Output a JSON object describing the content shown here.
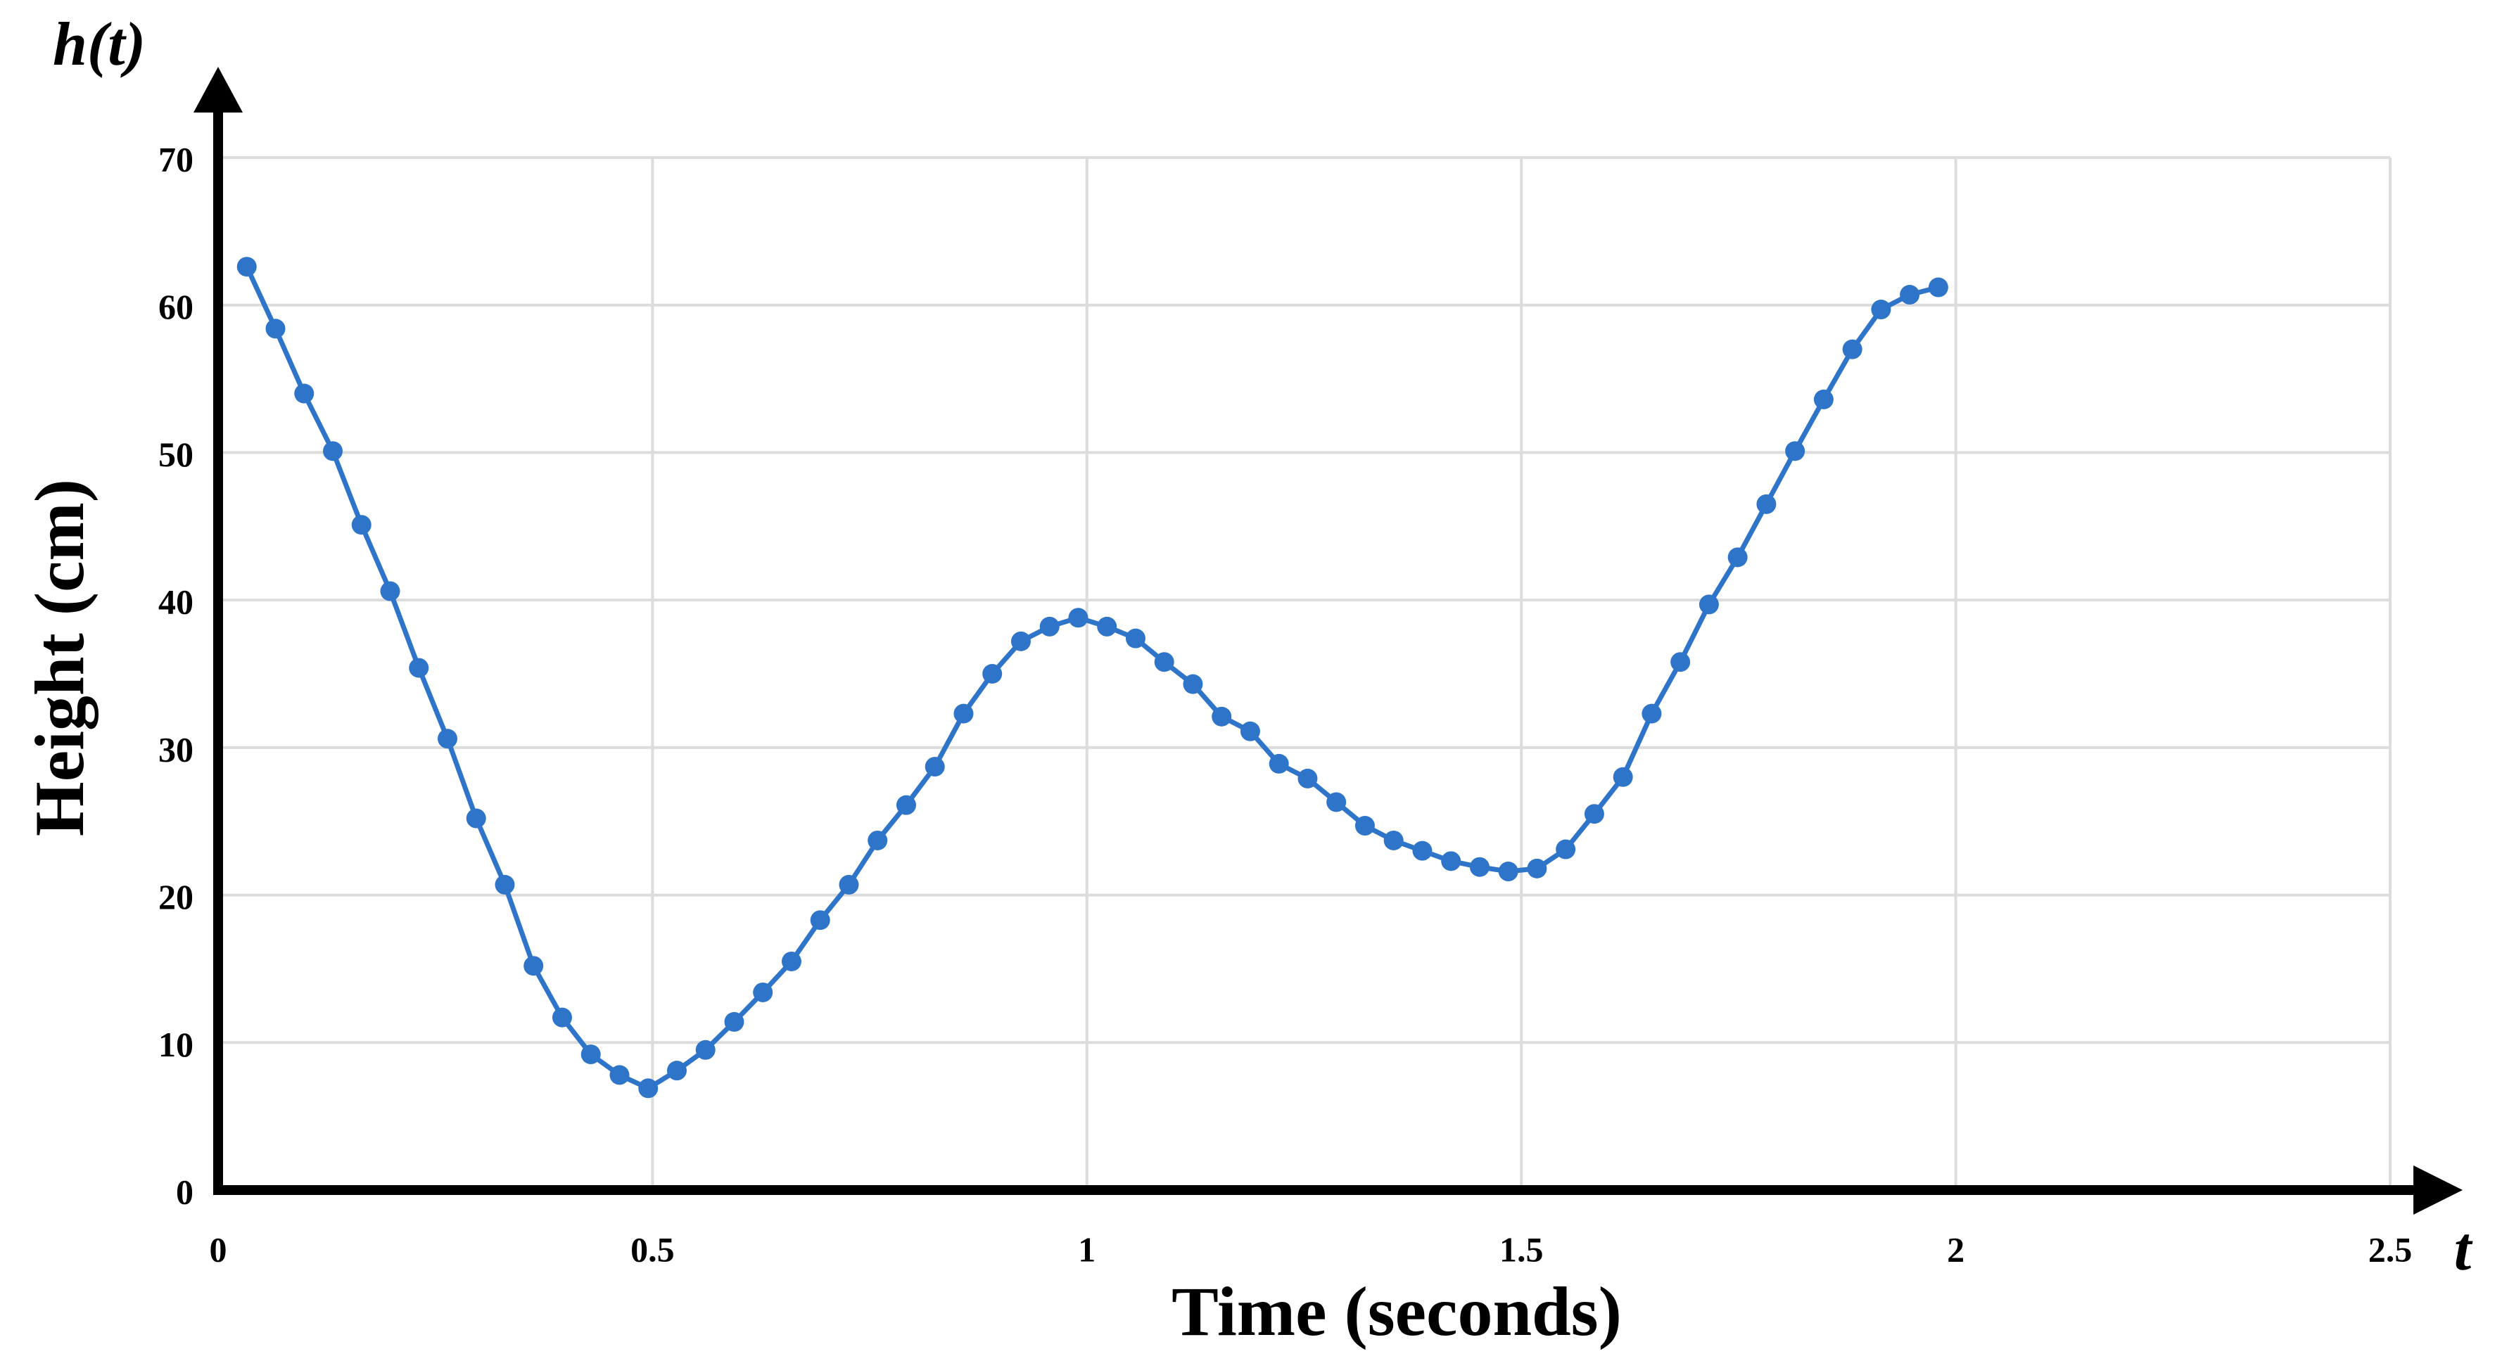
{
  "chart_data": {
    "type": "line",
    "y_label_top": "h(t)",
    "x_label_end": "t",
    "x_axis_title": "Time (seconds)",
    "y_axis_title": "Height (cm)",
    "x": [
      0.033,
      0.066,
      0.099,
      0.132,
      0.165,
      0.198,
      0.231,
      0.264,
      0.297,
      0.33,
      0.363,
      0.396,
      0.429,
      0.462,
      0.495,
      0.528,
      0.561,
      0.594,
      0.627,
      0.66,
      0.693,
      0.726,
      0.759,
      0.792,
      0.825,
      0.858,
      0.891,
      0.924,
      0.957,
      0.99,
      1.023,
      1.056,
      1.089,
      1.122,
      1.155,
      1.188,
      1.221,
      1.254,
      1.287,
      1.32,
      1.353,
      1.386,
      1.419,
      1.452,
      1.485,
      1.518,
      1.551,
      1.584,
      1.617,
      1.65,
      1.683,
      1.716,
      1.749,
      1.782,
      1.815,
      1.848,
      1.881,
      1.914,
      1.947,
      1.98
    ],
    "series": [
      {
        "color": "#2e75c9",
        "values": [
          62.6,
          58.4,
          54.0,
          50.1,
          45.1,
          40.6,
          35.4,
          30.6,
          25.2,
          20.7,
          15.2,
          11.7,
          9.2,
          7.8,
          6.9,
          8.1,
          9.5,
          11.4,
          13.4,
          15.5,
          18.3,
          20.7,
          23.7,
          26.1,
          28.7,
          32.3,
          35.0,
          37.2,
          38.2,
          38.8,
          38.2,
          37.4,
          35.8,
          34.3,
          32.1,
          31.1,
          28.9,
          27.9,
          26.3,
          24.7,
          23.7,
          23.0,
          22.3,
          21.9,
          21.6,
          21.8,
          23.1,
          25.5,
          28.0,
          32.3,
          35.8,
          39.7,
          42.9,
          46.5,
          50.1,
          53.6,
          57.0,
          59.7,
          60.7,
          61.2
        ]
      }
    ],
    "xlim": [
      0,
      2.5
    ],
    "xticks": [
      0,
      0.5,
      1,
      1.5,
      2,
      2.5
    ],
    "ylim": [
      0,
      70
    ],
    "yticks": [
      0,
      10,
      20,
      30,
      40,
      50,
      60,
      70
    ],
    "grid": true
  }
}
